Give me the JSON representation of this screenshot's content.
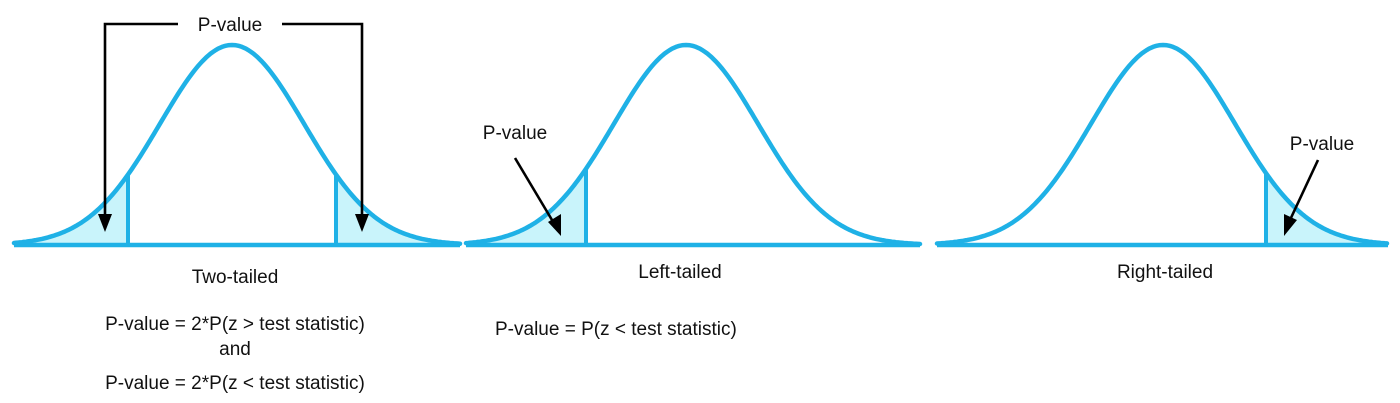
{
  "colors": {
    "curve": "#1fb1e6",
    "tail_fill": "#c9f4fb",
    "arrow": "#000000",
    "text": "#111111"
  },
  "panels": [
    {
      "id": "two-tailed",
      "tails": [
        "left",
        "right"
      ],
      "pvalue_label": "P-value",
      "title": "Two-tailed",
      "formula_lines": [
        "P-value = 2*P(z > test statistic)",
        "and",
        "P-value = 2*P(z < test statistic)"
      ]
    },
    {
      "id": "left-tailed",
      "tails": [
        "left"
      ],
      "pvalue_label": "P-value",
      "title": "Left-tailed",
      "formula_lines": [
        "P-value = P(z < test statistic)"
      ]
    },
    {
      "id": "right-tailed",
      "tails": [
        "right"
      ],
      "pvalue_label": "P-value",
      "title": "Right-tailed",
      "formula_lines": []
    }
  ]
}
